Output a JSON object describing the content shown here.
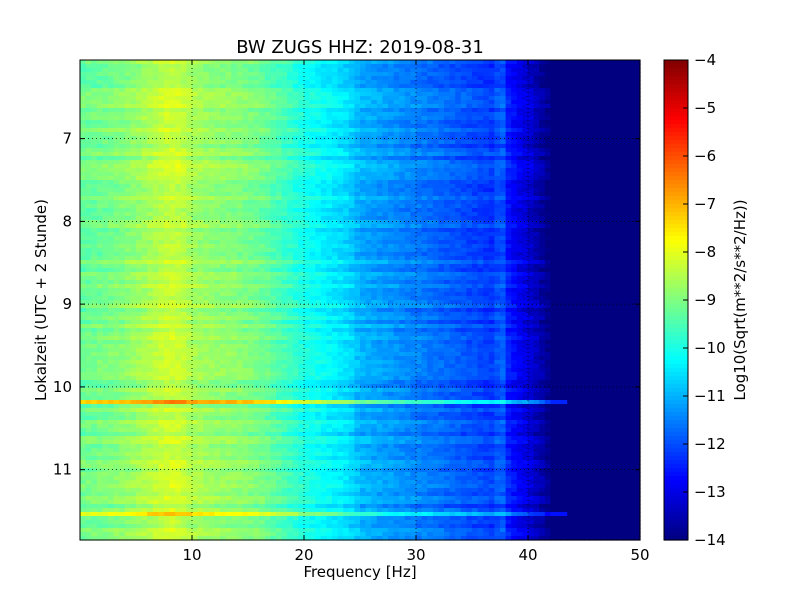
{
  "chart_data": {
    "type": "heatmap",
    "title": "BW ZUGS HHZ: 2019-08-31",
    "xlabel": "Frequency [Hz]",
    "ylabel": "Lokalzeit (UTC + 2 Stunde)",
    "xlim": [
      0,
      50
    ],
    "ylim": [
      11.85,
      6.05
    ],
    "y_inverted": true,
    "xticks": [
      10,
      20,
      30,
      40,
      50
    ],
    "yticks": [
      7,
      8,
      9,
      10,
      11
    ],
    "grid": true,
    "colormap": "jet",
    "colorbar": {
      "label": "Log10(Sqrt(m**2/s**2/Hz))",
      "range": [
        -14,
        -4
      ],
      "ticks": [
        -4,
        -5,
        -6,
        -7,
        -8,
        -9,
        -10,
        -11,
        -12,
        -13,
        -14
      ]
    },
    "frequency_profile": {
      "frequency_hz": [
        0,
        2,
        4,
        6,
        7,
        8,
        9,
        10,
        12,
        14,
        16,
        18,
        20,
        22,
        24,
        25,
        26,
        28,
        30,
        32,
        34,
        36,
        37,
        37.6,
        38,
        39,
        40,
        41,
        42,
        50
      ],
      "log10_amplitude": [
        -9.2,
        -9.1,
        -8.9,
        -8.6,
        -8.4,
        -8.25,
        -8.3,
        -8.6,
        -8.8,
        -8.9,
        -9.1,
        -9.5,
        -10.0,
        -10.3,
        -10.6,
        -11.0,
        -11.1,
        -11.3,
        -11.5,
        -11.7,
        -11.9,
        -12.1,
        -12.2,
        -11.6,
        -12.4,
        -12.8,
        -13.1,
        -13.5,
        -14.0,
        -14.0
      ]
    },
    "bright_events": [
      {
        "time": 10.18,
        "log10_amplitude_boost": 1.6,
        "until_hz": 43.5
      },
      {
        "time": 11.52,
        "log10_amplitude_boost": 1.4,
        "until_hz": 43.5
      }
    ]
  }
}
